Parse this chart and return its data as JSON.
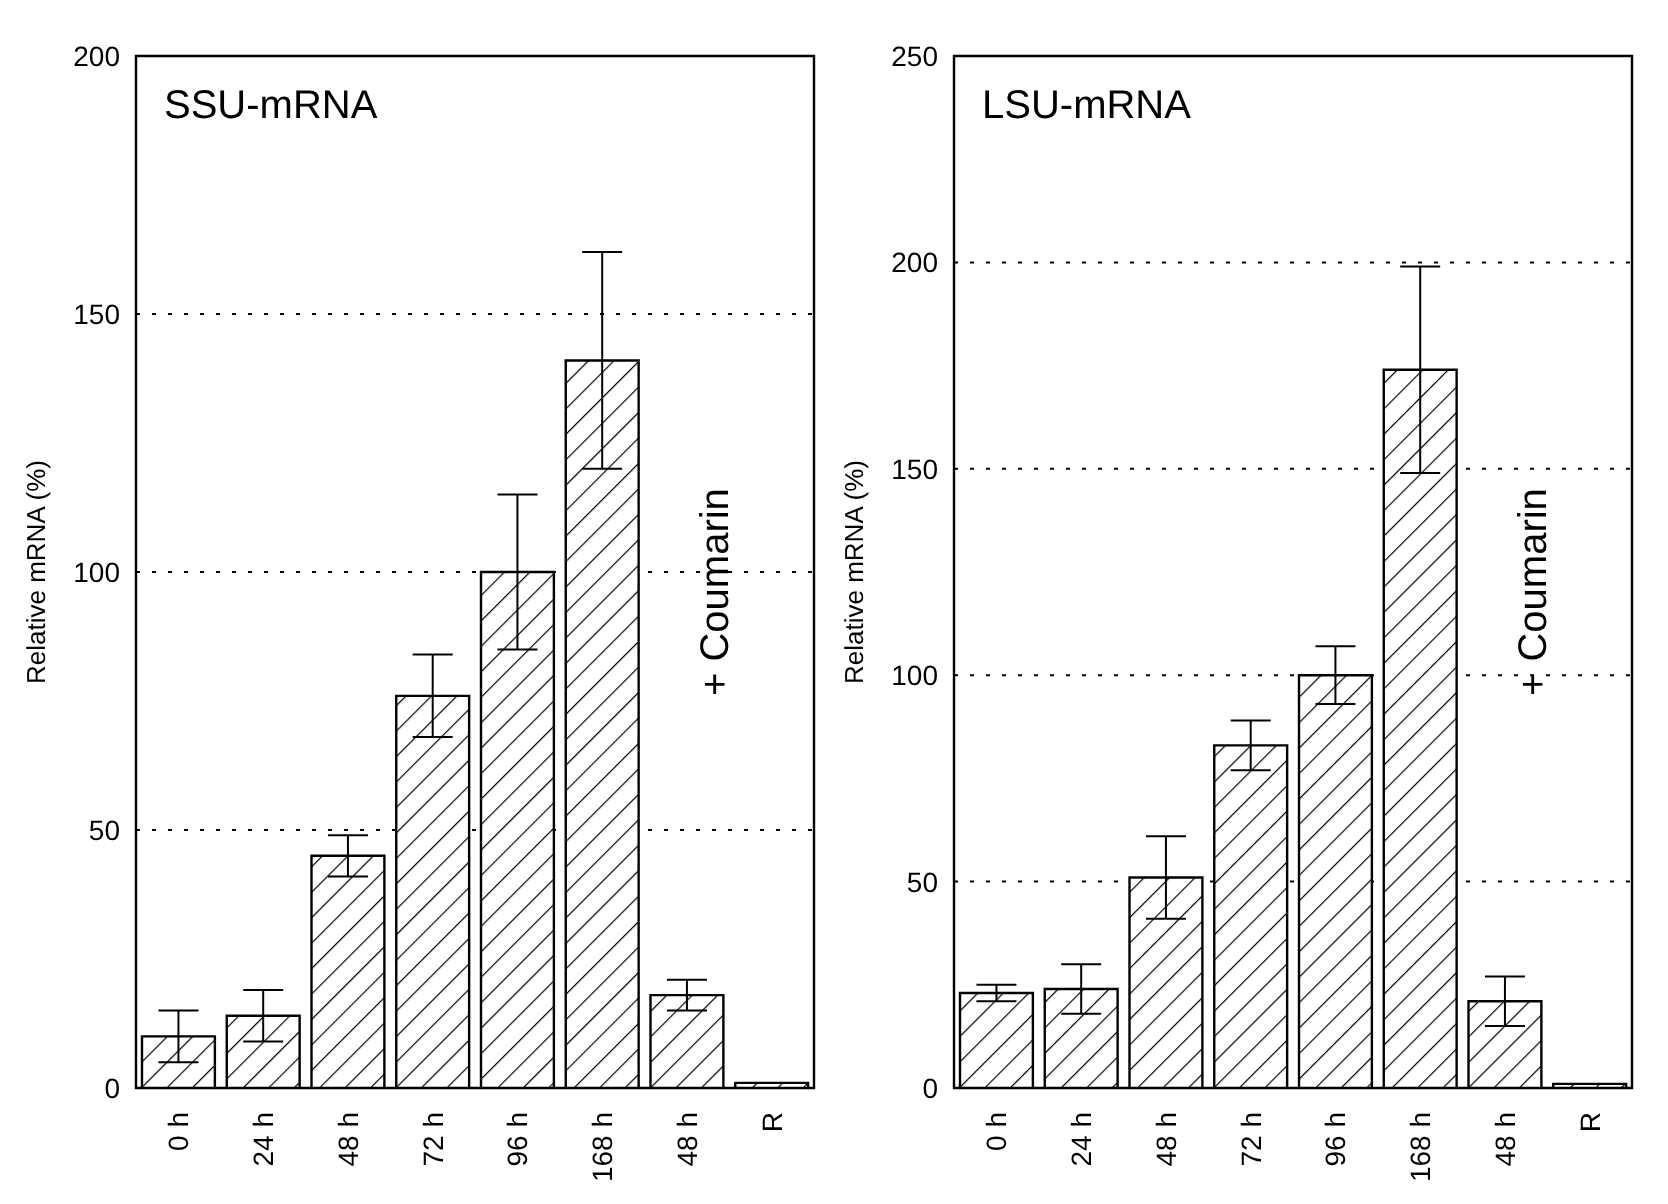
{
  "chart_data": [
    {
      "type": "bar",
      "title": "SSU-mRNA",
      "ylabel": "Relative mRNA (%)",
      "categories": [
        "0 h",
        "24 h",
        "48 h",
        "72 h",
        "96 h",
        "168 h",
        "48 h",
        "R"
      ],
      "values": [
        10,
        14,
        45,
        76,
        100,
        141,
        18,
        1
      ],
      "errors": [
        5,
        5,
        4,
        8,
        15,
        21,
        3,
        null
      ],
      "color": "#000000",
      "ylim": [
        0,
        200
      ],
      "yticks": [
        0,
        50,
        100,
        150,
        200
      ],
      "grid": "y",
      "annotations": [
        "+ Coumarin"
      ]
    },
    {
      "type": "bar",
      "title": "LSU-mRNA",
      "ylabel": "Relative mRNA (%)",
      "categories": [
        "0 h",
        "24 h",
        "48 h",
        "72 h",
        "96 h",
        "168 h",
        "48 h",
        "R"
      ],
      "values": [
        23,
        24,
        51,
        83,
        100,
        174,
        21,
        1
      ],
      "errors": [
        2,
        6,
        10,
        6,
        7,
        25,
        6,
        null
      ],
      "color": "#000000",
      "ylim": [
        0,
        250
      ],
      "yticks": [
        0,
        50,
        100,
        150,
        200,
        250
      ],
      "grid": "y",
      "annotations": [
        "+ Coumarin"
      ]
    }
  ]
}
